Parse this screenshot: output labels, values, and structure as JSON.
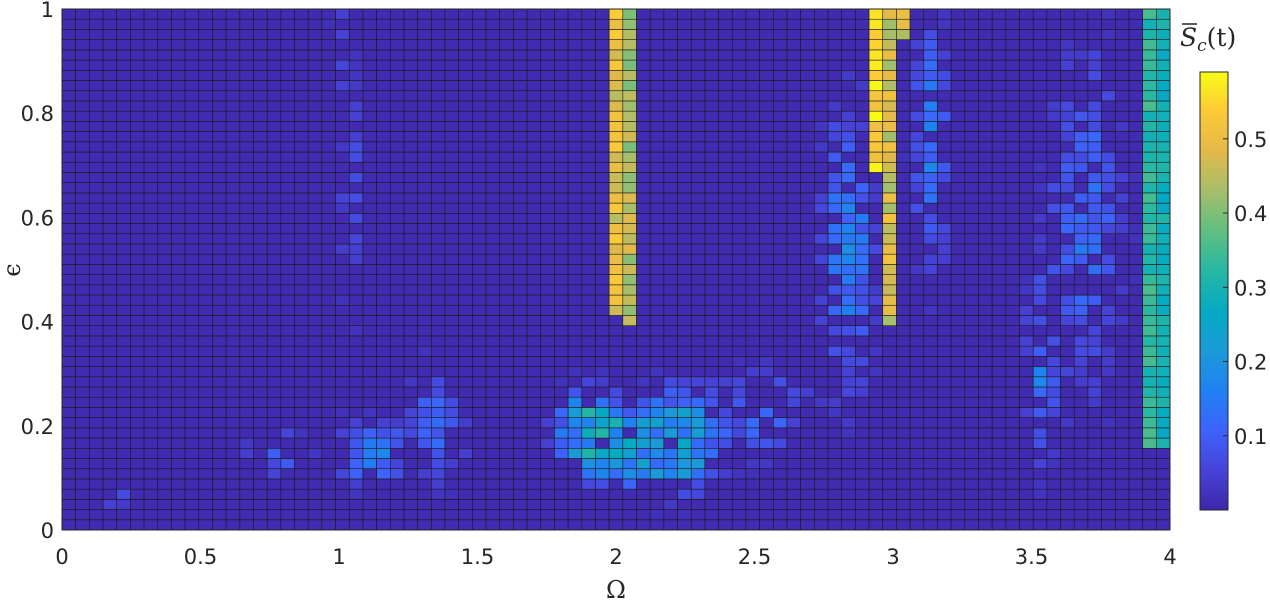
{
  "chart_data": {
    "type": "heatmap",
    "xlabel": "Ω",
    "ylabel": "ϵ",
    "xlim": [
      0,
      4
    ],
    "ylim": [
      0,
      1
    ],
    "x_ticks": [
      "0",
      "0.5",
      "1",
      "1.5",
      "2",
      "2.5",
      "3",
      "3.5",
      "4"
    ],
    "y_ticks": [
      "0",
      "0.2",
      "0.4",
      "0.6",
      "0.8",
      "1"
    ],
    "grid": {
      "nx": 81,
      "ny": 51
    },
    "colorbar": {
      "title_base": "S",
      "title_sub": "c",
      "title_arg": "(t)",
      "ticks": [
        "0.1",
        "0.2",
        "0.3",
        "0.4",
        "0.5"
      ],
      "range": [
        0.0,
        0.59
      ]
    },
    "colormap": [
      "#3e26a8",
      "#4743d8",
      "#3d63fc",
      "#1f82f2",
      "#1b9ad7",
      "#05aac2",
      "#26b7a4",
      "#60bf82",
      "#a5be6b",
      "#e3b94a",
      "#fcc938",
      "#f9fb15"
    ],
    "features": [
      {
        "x": 2.0,
        "y_from": 0.42,
        "y_to": 1.0,
        "value": 0.52
      },
      {
        "x": 2.05,
        "y_from": 0.4,
        "y_to": 1.0,
        "value": 0.46
      },
      {
        "x": 2.95,
        "y_from": 0.7,
        "y_to": 1.0,
        "value": 0.57
      },
      {
        "x": 3.0,
        "y_from": 0.4,
        "y_to": 1.0,
        "value": 0.5
      },
      {
        "x": 3.05,
        "y_from": 0.95,
        "y_to": 1.0,
        "value": 0.48
      },
      {
        "x": 3.95,
        "y_from": 0.15,
        "y_to": 1.0,
        "value": 0.34
      },
      {
        "x": 4.0,
        "y_from": 0.15,
        "y_to": 1.0,
        "value": 0.3
      }
    ]
  }
}
